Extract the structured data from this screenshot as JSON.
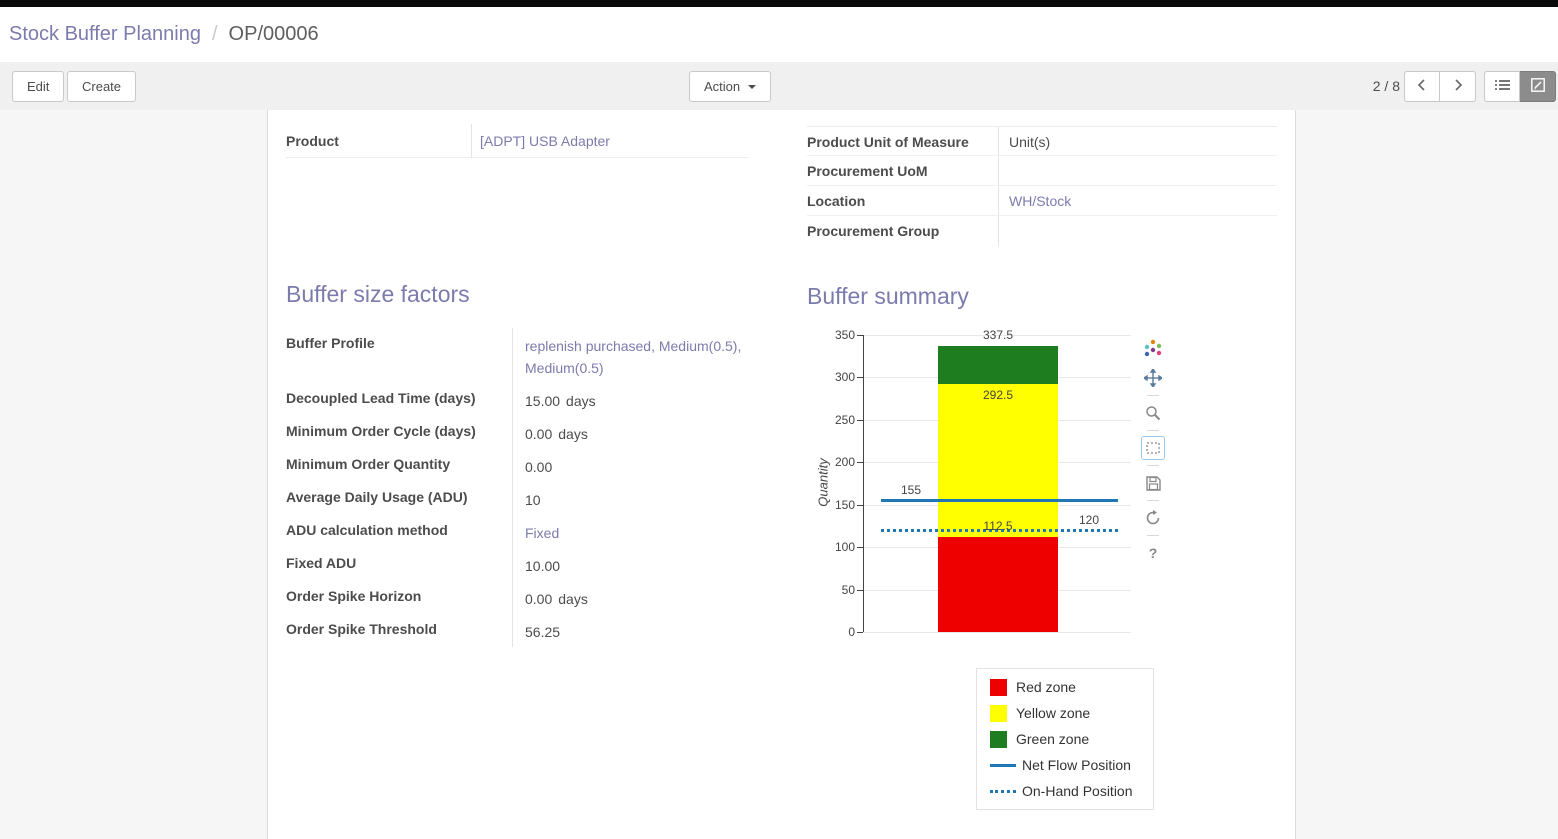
{
  "breadcrumb": {
    "parent": "Stock Buffer Planning",
    "separator": "/",
    "current": "OP/00006"
  },
  "toolbar": {
    "edit_label": "Edit",
    "create_label": "Create",
    "action_label": "Action",
    "pager": "2 / 8"
  },
  "sheet": {
    "product_field": {
      "label": "Product",
      "value": "[ADPT] USB Adapter"
    },
    "right_fields": [
      {
        "label": "Product Unit of Measure",
        "value": "Unit(s)"
      },
      {
        "label": "Procurement UoM",
        "value": ""
      },
      {
        "label": "Location",
        "value": "WH/Stock"
      },
      {
        "label": "Procurement Group",
        "value": ""
      }
    ],
    "factors": {
      "title": "Buffer size factors",
      "fields": [
        {
          "label": "Buffer Profile",
          "value": "replenish purchased, Medium(0.5), Medium(0.5)",
          "suffix": ""
        },
        {
          "label": "Decoupled Lead Time (days)",
          "value": "15.00",
          "suffix": "days"
        },
        {
          "label": "Minimum Order Cycle (days)",
          "value": "0.00",
          "suffix": "days"
        },
        {
          "label": "Minimum Order Quantity",
          "value": "0.00",
          "suffix": ""
        },
        {
          "label": "Average Daily Usage (ADU)",
          "value": "10",
          "suffix": ""
        },
        {
          "label": "ADU calculation method",
          "value": "Fixed",
          "suffix": ""
        },
        {
          "label": "Fixed ADU",
          "value": "10.00",
          "suffix": ""
        },
        {
          "label": "Order Spike Horizon",
          "value": "0.00",
          "suffix": "days"
        },
        {
          "label": "Order Spike Threshold",
          "value": "56.25",
          "suffix": ""
        }
      ]
    },
    "summary": {
      "title": "Buffer summary"
    }
  },
  "chart_data": {
    "type": "bar",
    "ylabel": "Quantity",
    "ylim": [
      0,
      350
    ],
    "yticks": [
      0,
      50,
      100,
      150,
      200,
      250,
      300,
      350
    ],
    "zones": [
      {
        "name": "Red zone",
        "from": 0,
        "to": 112.5,
        "color": "#ee0000"
      },
      {
        "name": "Yellow zone",
        "from": 112.5,
        "to": 292.5,
        "color": "#ffff00"
      },
      {
        "name": "Green zone",
        "from": 292.5,
        "to": 337.5,
        "color": "#1e7d1e"
      }
    ],
    "lines": [
      {
        "name": "Net Flow Position",
        "value": 155,
        "style": "solid",
        "color": "#1f77b4"
      },
      {
        "name": "On-Hand Position",
        "value": 120,
        "style": "dotted",
        "color": "#1f77b4"
      }
    ],
    "annotations": [
      {
        "text": "337.5",
        "value": 337.5,
        "pos": "above-bar"
      },
      {
        "text": "292.5",
        "value": 292.5,
        "pos": "below-boundary"
      },
      {
        "text": "155",
        "value": 155,
        "pos": "left-of-line"
      },
      {
        "text": "112.5",
        "value": 112.5,
        "pos": "above-boundary"
      },
      {
        "text": "120",
        "value": 120,
        "pos": "right-of-line"
      }
    ],
    "legend": [
      "Red zone",
      "Yellow zone",
      "Green zone",
      "Net Flow Position",
      "On-Hand Position"
    ],
    "grid": true,
    "legend_position": "bottom-right",
    "chart_toolbar_icons": [
      "plotly-logo",
      "pan",
      "zoom",
      "box-select",
      "save",
      "autoscale",
      "help"
    ]
  }
}
